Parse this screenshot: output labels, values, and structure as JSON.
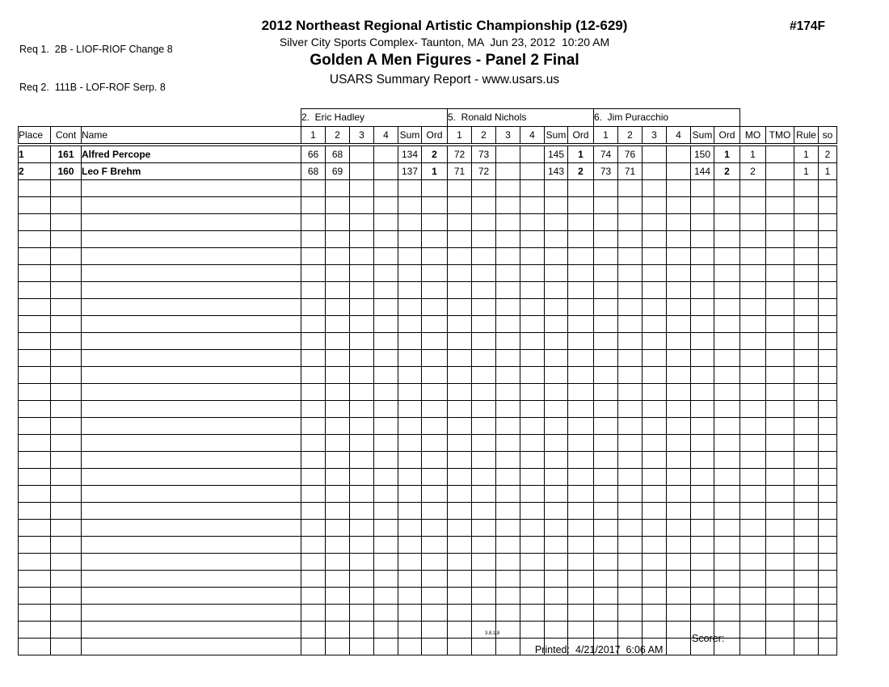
{
  "header": {
    "req_lines": [
      "Req 1.  2B - LIOF-RIOF Change 8",
      "Req 2.  111B - LOF-ROF Serp. 8"
    ],
    "title": "2012 Northeast Regional Artistic Championship (12-629)",
    "venue_line": "Silver City Sports Complex- Taunton, MA  Jun 23, 2012  10:20 AM",
    "event_title": "Golden A Men Figures - Panel 2 Final",
    "report_line": "USARS Summary Report - www.usars.us",
    "sheet_number": "#174F"
  },
  "table": {
    "left_headers": [
      "Place",
      "Cont",
      "Name"
    ],
    "judges": [
      "2.  Eric Hadley",
      "5.  Ronald Nichols",
      "6.  Jim Puracchio"
    ],
    "judge_score_headers": [
      "1",
      "2",
      "3",
      "4",
      "Sum",
      "Ord"
    ],
    "right_headers": [
      "MO",
      "TMO",
      "Rule",
      "so"
    ],
    "rows": [
      {
        "place": "1",
        "cont": "161",
        "name": "Alfred Percope",
        "judges": [
          {
            "scores": [
              "66",
              "68",
              "",
              ""
            ],
            "sum": "134",
            "ord": "2"
          },
          {
            "scores": [
              "72",
              "73",
              "",
              ""
            ],
            "sum": "145",
            "ord": "1"
          },
          {
            "scores": [
              "74",
              "76",
              "",
              ""
            ],
            "sum": "150",
            "ord": "1"
          }
        ],
        "mo": "1",
        "tmo": "",
        "rule": "1",
        "so": "2"
      },
      {
        "place": "2",
        "cont": "160",
        "name": "Leo F Brehm",
        "judges": [
          {
            "scores": [
              "68",
              "69",
              "",
              ""
            ],
            "sum": "137",
            "ord": "1"
          },
          {
            "scores": [
              "71",
              "72",
              "",
              ""
            ],
            "sum": "143",
            "ord": "2"
          },
          {
            "scores": [
              "73",
              "71",
              "",
              ""
            ],
            "sum": "144",
            "ord": "2"
          }
        ],
        "mo": "2",
        "tmo": "",
        "rule": "1",
        "so": "1"
      }
    ],
    "empty_row_count": 28
  },
  "footer": {
    "version": "3.8.1.8",
    "printed_label": "Printed:",
    "printed_value": "4/21/2017  6:06 AM",
    "scorer_label": "Scorer:"
  },
  "colors": {
    "ink": "#000000",
    "paper": "#ffffff"
  }
}
